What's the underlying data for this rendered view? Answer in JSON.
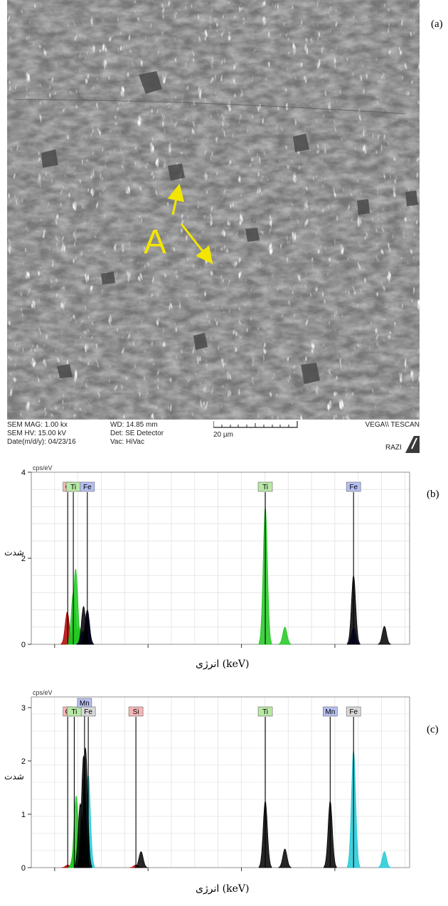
{
  "panel_a": {
    "label": "(a)",
    "marker_label": "A",
    "meta": {
      "mag": "SEM MAG: 1.00 kx",
      "hv": "SEM HV: 15.00 kV",
      "date": "Date(m/d/y): 04/23/16",
      "wd": "WD: 14.85 mm",
      "det": "Det: SE Detector",
      "vac": "Vac: HiVac",
      "scale": "20 µm",
      "brand": "VEGA\\\\ TESCAN",
      "lab": "RAZI"
    },
    "colors": {
      "marker": "#f2e600",
      "background": "#7a7a7a"
    }
  },
  "chart_data": [
    {
      "type": "line",
      "panel_label": "(b)",
      "y_unit": "cps/eV",
      "ylabel": "شدت",
      "xlabel": "انرژی (keV)",
      "xlim": [
        -0.5,
        7.6
      ],
      "ylim": [
        0,
        4
      ],
      "x_ticks": [
        0,
        2,
        4,
        6
      ],
      "y_ticks": [
        0,
        2,
        4
      ],
      "grid": true,
      "element_labels": [
        {
          "label": "C",
          "x": 0.28,
          "color": "#f4b6b6"
        },
        {
          "label": "Ti",
          "x": 0.4,
          "color": "#b9e8a6"
        },
        {
          "label": "Fe",
          "x": 0.7,
          "color": "#b6bff2"
        },
        {
          "label": "Ti",
          "x": 4.51,
          "color": "#b9e8a6"
        },
        {
          "label": "Fe",
          "x": 6.4,
          "color": "#b6bff2"
        }
      ],
      "series": [
        {
          "color": "#b00000",
          "points": [
            [
              0.27,
              0.75
            ]
          ]
        },
        {
          "color": "#1ec81e",
          "points": [
            [
              0.4,
              1.2
            ],
            [
              0.45,
              1.75
            ],
            [
              0.52,
              0.4
            ],
            [
              4.51,
              3.2
            ],
            [
              4.93,
              0.4
            ]
          ]
        },
        {
          "color": "#1010c0",
          "points": [
            [
              0.6,
              0.3
            ],
            [
              0.7,
              0.8
            ],
            [
              6.4,
              0.38
            ]
          ]
        },
        {
          "color": "#000000",
          "points": [
            [
              0.62,
              0.88
            ],
            [
              0.7,
              0.8
            ],
            [
              6.4,
              1.6
            ],
            [
              7.06,
              0.42
            ]
          ]
        }
      ]
    },
    {
      "type": "line",
      "panel_label": "(c)",
      "y_unit": "cps/eV",
      "ylabel": "شدت",
      "xlabel": "انرژی (keV)",
      "xlim": [
        -0.5,
        7.6
      ],
      "ylim": [
        0,
        3.2
      ],
      "x_ticks": [
        0,
        2,
        4,
        6
      ],
      "y_ticks": [
        0,
        1,
        2,
        3
      ],
      "grid": true,
      "element_labels": [
        {
          "label": "C",
          "x": 0.28,
          "color": "#f4b6b6"
        },
        {
          "label": "Ti",
          "x": 0.42,
          "color": "#b9e8a6"
        },
        {
          "label": "Mn",
          "x": 0.64,
          "color": "#b6bff2",
          "stack": 2
        },
        {
          "label": "Fe",
          "x": 0.72,
          "color": "#d8d8d8"
        },
        {
          "label": "Si",
          "x": 1.74,
          "color": "#f4b6b6"
        },
        {
          "label": "Ti",
          "x": 4.51,
          "color": "#b9e8a6"
        },
        {
          "label": "Mn",
          "x": 5.9,
          "color": "#b6bff2"
        },
        {
          "label": "Fe",
          "x": 6.4,
          "color": "#d8d8d8"
        }
      ],
      "series": [
        {
          "color": "#b00000",
          "points": [
            [
              0.28,
              0.05
            ],
            [
              1.74,
              0.05
            ]
          ]
        },
        {
          "color": "#1ec81e",
          "points": [
            [
              0.42,
              0.35
            ],
            [
              0.46,
              1.35
            ]
          ]
        },
        {
          "color": "#1010c0",
          "points": [
            [
              0.57,
              0.3
            ],
            [
              0.64,
              0.5
            ]
          ]
        },
        {
          "color": "#1ec8d6",
          "points": [
            [
              0.72,
              1.75
            ],
            [
              6.4,
              2.2
            ],
            [
              7.06,
              0.3
            ]
          ]
        },
        {
          "color": "#000000",
          "points": [
            [
              0.55,
              1.2
            ],
            [
              0.62,
              2.1
            ],
            [
              0.66,
              2.25
            ],
            [
              1.85,
              0.3
            ],
            [
              4.51,
              1.25
            ],
            [
              4.93,
              0.35
            ],
            [
              5.9,
              1.25
            ]
          ]
        }
      ]
    }
  ]
}
